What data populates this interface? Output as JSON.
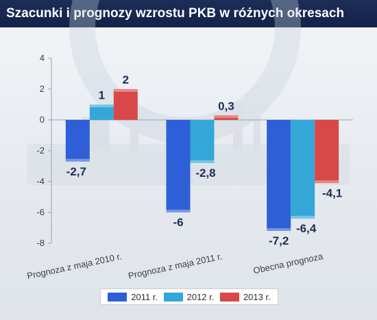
{
  "title": "Szacunki i prognozy wzrostu PKB w różnych okresach",
  "chart_data": {
    "type": "bar",
    "categories": [
      "Prognoza z maja 2010 r.",
      "Prognoza z maja 2011 r.",
      "Obecna prognoza"
    ],
    "series": [
      {
        "name": "2011 r.",
        "color": "#2f5fd6",
        "values": [
          -2.7,
          -6,
          -7.2
        ],
        "labels": [
          "-2,7",
          "-6",
          "-7,2"
        ]
      },
      {
        "name": "2012 r.",
        "color": "#34a7d9",
        "values": [
          1,
          -2.8,
          -6.4
        ],
        "labels": [
          "1",
          "-2,8",
          "-6,4"
        ]
      },
      {
        "name": "2013 r.",
        "color": "#d94848",
        "values": [
          2,
          0.3,
          -4.1
        ],
        "labels": [
          "2",
          "0,3",
          "-4,1"
        ]
      }
    ],
    "yticks": [
      "4",
      "2",
      "0",
      "-2",
      "-4",
      "-6",
      "-8"
    ],
    "ylim": [
      -8,
      4
    ],
    "grid": false,
    "legend": "bottom"
  }
}
